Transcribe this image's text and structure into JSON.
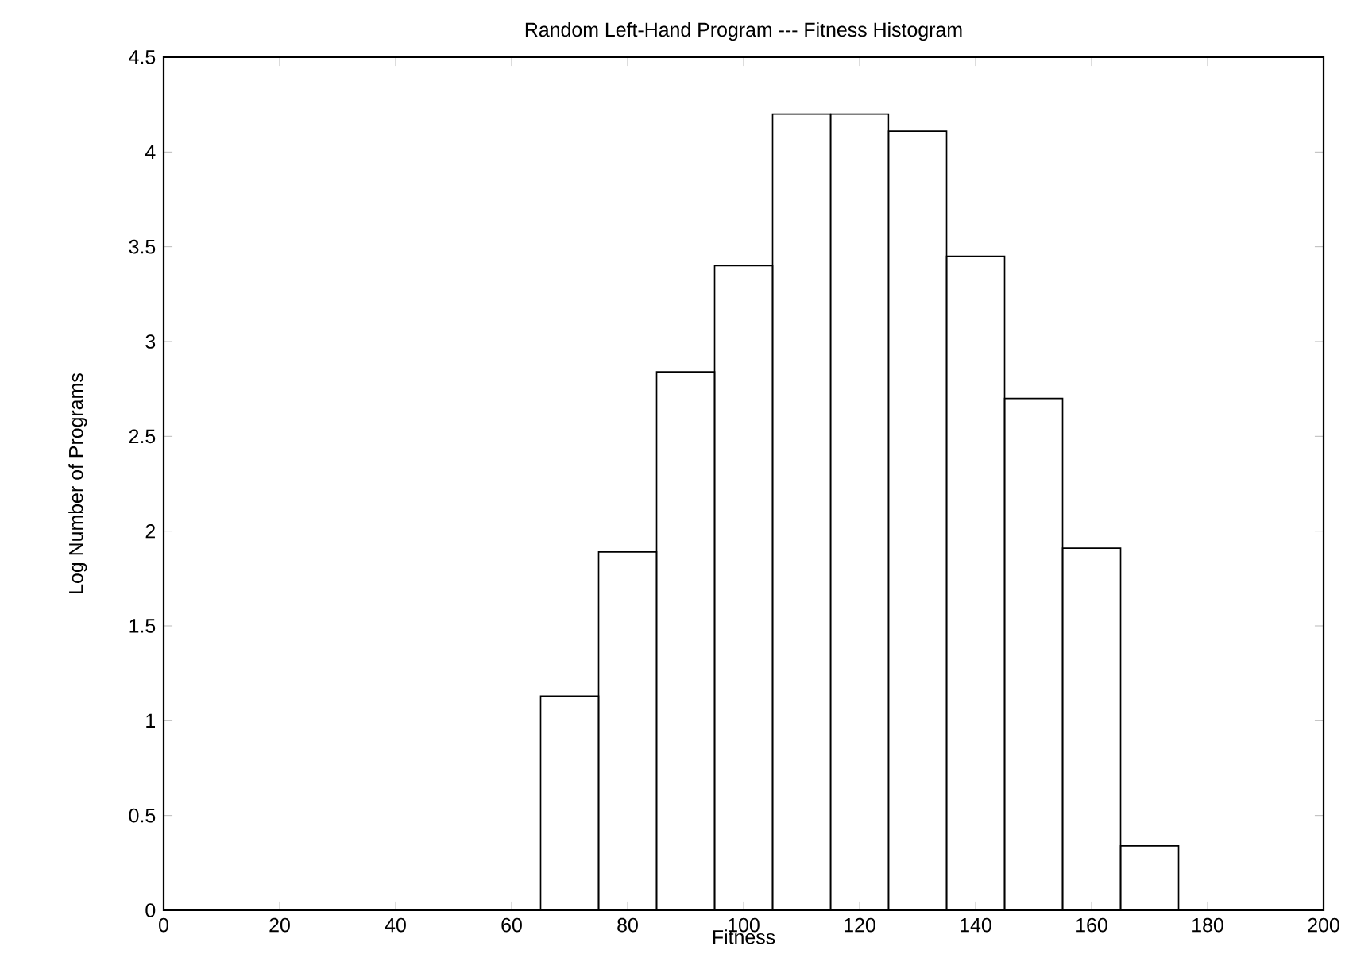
{
  "chart_data": {
    "type": "histogram",
    "title": "Random Left-Hand Program --- Fitness Histogram",
    "xlabel": "Fitness",
    "ylabel": "Log Number of Programs",
    "bins": [
      65,
      75,
      85,
      95,
      105,
      115,
      125,
      135,
      145,
      155,
      165,
      175
    ],
    "values": [
      1.13,
      1.89,
      2.84,
      3.4,
      4.2,
      4.2,
      4.11,
      3.45,
      2.7,
      1.91,
      0.34
    ],
    "color": "#000000",
    "xlim": [
      0,
      200
    ],
    "xticks": [
      0,
      20,
      40,
      60,
      80,
      100,
      120,
      140,
      160,
      180,
      200
    ],
    "ylim": [
      0,
      4.5
    ],
    "yticks": [
      0,
      0.5,
      1,
      1.5,
      2,
      2.5,
      3,
      3.5,
      4,
      4.5
    ],
    "grid": false
  }
}
